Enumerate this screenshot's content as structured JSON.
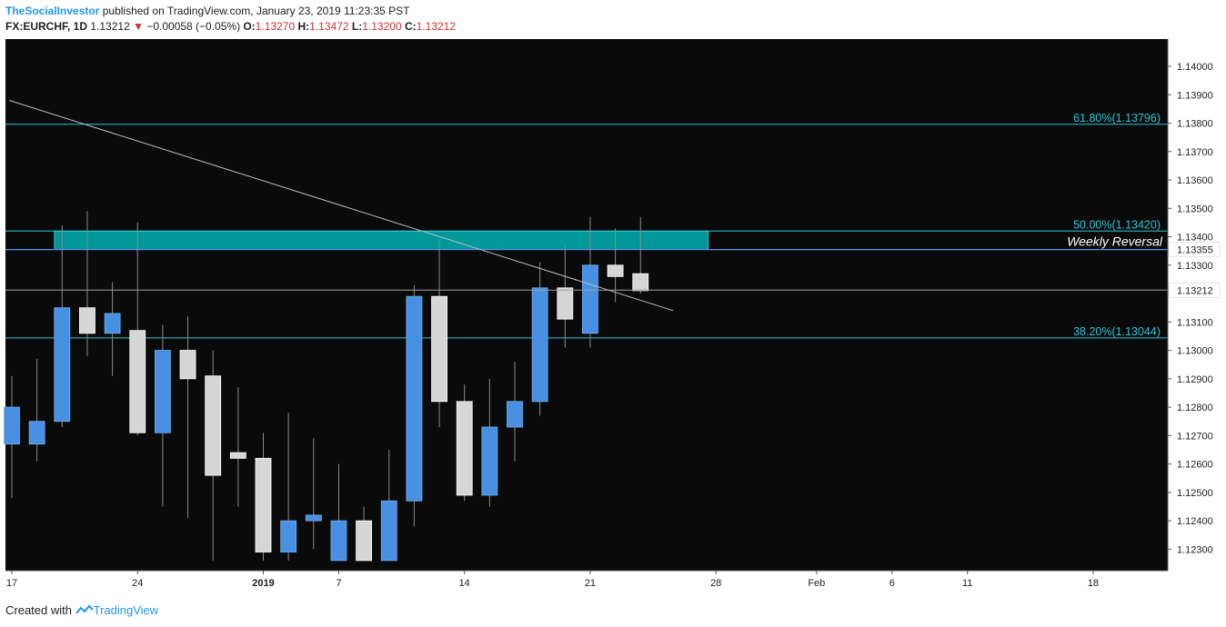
{
  "header": {
    "author": "TheSocialInvestor",
    "published_text": "published on TradingView.com, January 23, 2019 11:23:35 PST",
    "symbol": "FX:EURCHF, 1D",
    "last": "1.13212",
    "change": "−0.00058 (−0.05%)",
    "o_label": "O:",
    "o_value": "1.13270",
    "h_label": "H:",
    "h_value": "1.13472",
    "l_label": "L:",
    "l_value": "1.13200",
    "c_label": "C:",
    "c_value": "1.13212"
  },
  "footer": {
    "created_with": "Created with",
    "brand": "TradingView"
  },
  "chart_data": {
    "type": "candlestick",
    "title": "FX:EURCHF, 1D",
    "ylim": [
      1.1225,
      1.1408
    ],
    "y_ticks": [
      "1.14000",
      "1.13900",
      "1.13800",
      "1.13700",
      "1.13600",
      "1.13500",
      "1.13400",
      "1.13300",
      "1.13100",
      "1.13000",
      "1.12900",
      "1.12800",
      "1.12700",
      "1.12600",
      "1.12500",
      "1.12400",
      "1.12300"
    ],
    "x_ticks": [
      {
        "label": "17",
        "i": 0
      },
      {
        "label": "24",
        "i": 5
      },
      {
        "label": "2019",
        "i": 10
      },
      {
        "label": "7",
        "i": 13
      },
      {
        "label": "14",
        "i": 18
      },
      {
        "label": "21",
        "i": 23
      },
      {
        "label": "28",
        "i": 28
      },
      {
        "label": "Feb",
        "i": 32
      },
      {
        "label": "6",
        "i": 35
      },
      {
        "label": "11",
        "i": 38
      },
      {
        "label": "18",
        "i": 43
      }
    ],
    "candles": [
      {
        "o": 1.1267,
        "h": 1.1291,
        "l": 1.1248,
        "c": 1.128
      },
      {
        "o": 1.1267,
        "h": 1.1297,
        "l": 1.1261,
        "c": 1.1275
      },
      {
        "o": 1.1275,
        "h": 1.1344,
        "l": 1.1273,
        "c": 1.1315
      },
      {
        "o": 1.1315,
        "h": 1.1349,
        "l": 1.1298,
        "c": 1.1306
      },
      {
        "o": 1.1306,
        "h": 1.1324,
        "l": 1.1291,
        "c": 1.1313
      },
      {
        "o": 1.1307,
        "h": 1.1345,
        "l": 1.127,
        "c": 1.1271
      },
      {
        "o": 1.1271,
        "h": 1.1309,
        "l": 1.1245,
        "c": 1.13
      },
      {
        "o": 1.13,
        "h": 1.1312,
        "l": 1.1241,
        "c": 1.129
      },
      {
        "o": 1.1291,
        "h": 1.13,
        "l": 1.1226,
        "c": 1.1256
      },
      {
        "o": 1.1264,
        "h": 1.1287,
        "l": 1.1245,
        "c": 1.1262
      },
      {
        "o": 1.1262,
        "h": 1.1271,
        "l": 1.1226,
        "c": 1.1229
      },
      {
        "o": 1.1229,
        "h": 1.1278,
        "l": 1.1226,
        "c": 1.124
      },
      {
        "o": 1.124,
        "h": 1.1269,
        "l": 1.123,
        "c": 1.1242
      },
      {
        "o": 1.1226,
        "h": 1.126,
        "l": 1.1226,
        "c": 1.124
      },
      {
        "o": 1.124,
        "h": 1.1245,
        "l": 1.1226,
        "c": 1.1226
      },
      {
        "o": 1.1226,
        "h": 1.1265,
        "l": 1.1226,
        "c": 1.1247
      },
      {
        "o": 1.1247,
        "h": 1.1323,
        "l": 1.1238,
        "c": 1.1319
      },
      {
        "o": 1.1319,
        "h": 1.1339,
        "l": 1.1273,
        "c": 1.1282
      },
      {
        "o": 1.1282,
        "h": 1.1288,
        "l": 1.1247,
        "c": 1.1249
      },
      {
        "o": 1.1249,
        "h": 1.129,
        "l": 1.1245,
        "c": 1.1273
      },
      {
        "o": 1.1273,
        "h": 1.1296,
        "l": 1.1261,
        "c": 1.1282
      },
      {
        "o": 1.1282,
        "h": 1.1331,
        "l": 1.1277,
        "c": 1.1322
      },
      {
        "o": 1.1322,
        "h": 1.1337,
        "l": 1.1301,
        "c": 1.1311
      },
      {
        "o": 1.1306,
        "h": 1.1347,
        "l": 1.1301,
        "c": 1.133
      },
      {
        "o": 1.133,
        "h": 1.1343,
        "l": 1.1317,
        "c": 1.1326
      },
      {
        "o": 1.1327,
        "h": 1.1347,
        "l": 1.132,
        "c": 1.1321
      }
    ],
    "levels": [
      {
        "label": "61.80%(1.13796)",
        "value": 1.13796
      },
      {
        "label": "50.00%(1.13420)",
        "value": 1.1342
      },
      {
        "label": "38.20%(1.13044)",
        "value": 1.13044
      }
    ],
    "zone": {
      "label": "Weekly Reversal",
      "top": 1.1342,
      "bottom": 1.13355,
      "from_i": 2,
      "to_i": 28,
      "edge_tag": "1.13355"
    },
    "trendline": {
      "i1": -0.1,
      "v1": 1.1388,
      "i2": 26.3,
      "v2": 1.1314
    },
    "last_price": {
      "value": 1.13212,
      "tag": "1.13212"
    },
    "colors": {
      "background": "#0a0a0a",
      "up": "#4a90e2",
      "down": "#d6d6d6",
      "level": "#26c6da",
      "zone": "#009999"
    }
  }
}
